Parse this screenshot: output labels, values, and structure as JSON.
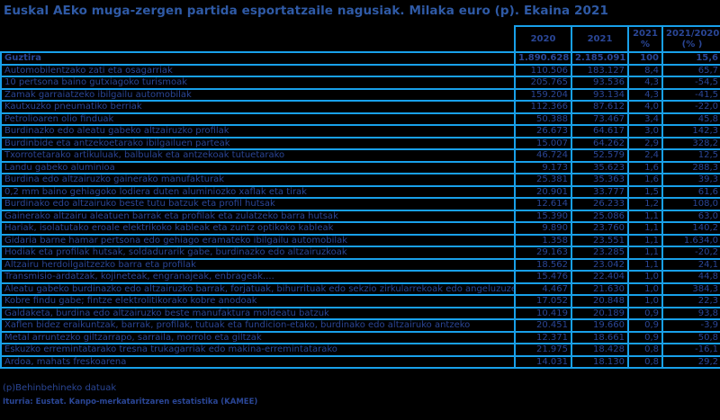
{
  "title": "Euskal AEko muga-zergen partida esportatzaile nagusiak. Milaka euro (p).  Ekaina 2021",
  "colors": {
    "background": "#000000",
    "text": "#2a4696",
    "title": "#2f5aa6",
    "border": "#18a0ea"
  },
  "table": {
    "headers": [
      "",
      "2020",
      "2021",
      "2021\n%",
      "2021/2020\n(% )"
    ],
    "header_lines": {
      "c1": "2020",
      "c2": "2021",
      "c3a": "2021",
      "c3b": "%",
      "c4a": "2021/2020",
      "c4b": "(% )"
    },
    "rows": [
      {
        "label": "Guztira",
        "v2020": "1.890.628",
        "v2021": "2.185.091",
        "pct": "100",
        "chg": "15,6"
      },
      {
        "label": "Automobilentzako zati eta osagarriak",
        "v2020": "110.506",
        "v2021": "183.127",
        "pct": "8,4",
        "chg": "65,7"
      },
      {
        "label": "10 pertsona baino gutxiagoko turismoak",
        "v2020": "205.765",
        "v2021": "93.536",
        "pct": "4,3",
        "chg": "-54,5"
      },
      {
        "label": "Zamak garraiatzeko ibilgailu automobilak",
        "v2020": "159.204",
        "v2021": "93.134",
        "pct": "4,3",
        "chg": "-41,5"
      },
      {
        "label": "Kautxuzko pneumatiko berriak",
        "v2020": "112.366",
        "v2021": "87.612",
        "pct": "4,0",
        "chg": "-22,0"
      },
      {
        "label": "Petrolioaren olio finduak",
        "v2020": "50.388",
        "v2021": "73.467",
        "pct": "3,4",
        "chg": "45,8"
      },
      {
        "label": "Burdinazko edo aleatu gabeko altzairuzko profilak",
        "v2020": "26.673",
        "v2021": "64.617",
        "pct": "3,0",
        "chg": "142,3"
      },
      {
        "label": "Burdinbide eta antzekoetarako ibilgailuen parteak",
        "v2020": "15.007",
        "v2021": "64.262",
        "pct": "2,9",
        "chg": "328,2"
      },
      {
        "label": "Txorrotetarako artikuluak, balbulak eta antzekoak tutuetarako",
        "v2020": "46.724",
        "v2021": "52.579",
        "pct": "2,4",
        "chg": "12,5"
      },
      {
        "label": "Landu gabeko aluminioa",
        "v2020": "9.173",
        "v2021": "35.623",
        "pct": "1,6",
        "chg": "288,3"
      },
      {
        "label": "Burdina edo altzairuzko gainerako manufakturak",
        "v2020": "25.381",
        "v2021": "35.363",
        "pct": "1,6",
        "chg": "39,3"
      },
      {
        "label": "0,2 mm baino gehiagoko lodiera duten aluminiozko xaflak eta tirak",
        "v2020": "20.901",
        "v2021": "33.777",
        "pct": "1,5",
        "chg": "61,6"
      },
      {
        "label": "Burdinako edo altzairuko beste tutu batzuk eta profil hutsak",
        "v2020": "12.614",
        "v2021": "26.233",
        "pct": "1,2",
        "chg": "108,0"
      },
      {
        "label": "Gainerako altzairu aleatuen barrak eta profilak eta zulatzeko barra hutsak",
        "v2020": "15.390",
        "v2021": "25.086",
        "pct": "1,1",
        "chg": "63,0"
      },
      {
        "label": "Hariak, isolatutako eroale elektrikoko kableak eta zuntz optikoko kableak",
        "v2020": "9.890",
        "v2021": "23.760",
        "pct": "1,1",
        "chg": "140,2"
      },
      {
        "label": "Gidaria barne hamar pertsona edo gehiago eramateko ibilgailu automobilak",
        "v2020": "1.358",
        "v2021": "23.551",
        "pct": "1,1",
        "chg": "1.634,0"
      },
      {
        "label": "Hodiak eta profilak hutsak, soldadurarik gabe, burdinazko edo altzairuzkoak",
        "v2020": "29.163",
        "v2021": "23.285",
        "pct": "1,1",
        "chg": "-20,2"
      },
      {
        "label": "Altzairu herdoilgaitzezko barra eta profilak",
        "v2020": "18.562",
        "v2021": "23.042",
        "pct": "1,1",
        "chg": "24,1"
      },
      {
        "label": "Transmisio-ardatzak, kojineteak, engranajeak, enbrageak....",
        "v2020": "15.476",
        "v2021": "22.404",
        "pct": "1,0",
        "chg": "44,8"
      },
      {
        "label": "Aleatu gabeko burdinazko edo altzairuzko barrak, forjatuak, bihurrituak edo sekzio zirkularrekoak edo angeluzuzenekoak",
        "v2020": "4.467",
        "v2021": "21.630",
        "pct": "1,0",
        "chg": "384,3"
      },
      {
        "label": "Kobre findu gabe; fintze elektrolitikorako kobre anodoak",
        "v2020": "17.052",
        "v2021": "20.848",
        "pct": "1,0",
        "chg": "22,3"
      },
      {
        "label": "Galdaketa, burdina edo altzairuzko beste manufaktura moldeatu batzuk",
        "v2020": "10.419",
        "v2021": "20.189",
        "pct": "0,9",
        "chg": "93,8"
      },
      {
        "label": "Xaflen bidez eraikuntzak, barrak, profilak, tutuak eta fundicion-etako, burdinako edo altzairuko antzeko",
        "v2020": "20.451",
        "v2021": "19.660",
        "pct": "0,9",
        "chg": "-3,9"
      },
      {
        "label": "Metal arruntezko giltzarrapo, sarraila, morrolo eta giltzak",
        "v2020": "12.371",
        "v2021": "18.661",
        "pct": "0,9",
        "chg": "50,8"
      },
      {
        "label": "Eskuzko erremintatarako tresna trukagarriak edo  makina-erremintatarako",
        "v2020": "21.975",
        "v2021": "18.428",
        "pct": "0,8",
        "chg": "-16,1"
      },
      {
        "label": "Ardoa, mahats freskoarena",
        "v2020": "14.031",
        "v2021": "18.130",
        "pct": "0,8",
        "chg": "29,2"
      }
    ]
  },
  "footnote": "(p)Behinbehineko datuak",
  "source": "Iturria: Eustat. Kanpo-merkataritzaren estatistika (KAMEE)"
}
